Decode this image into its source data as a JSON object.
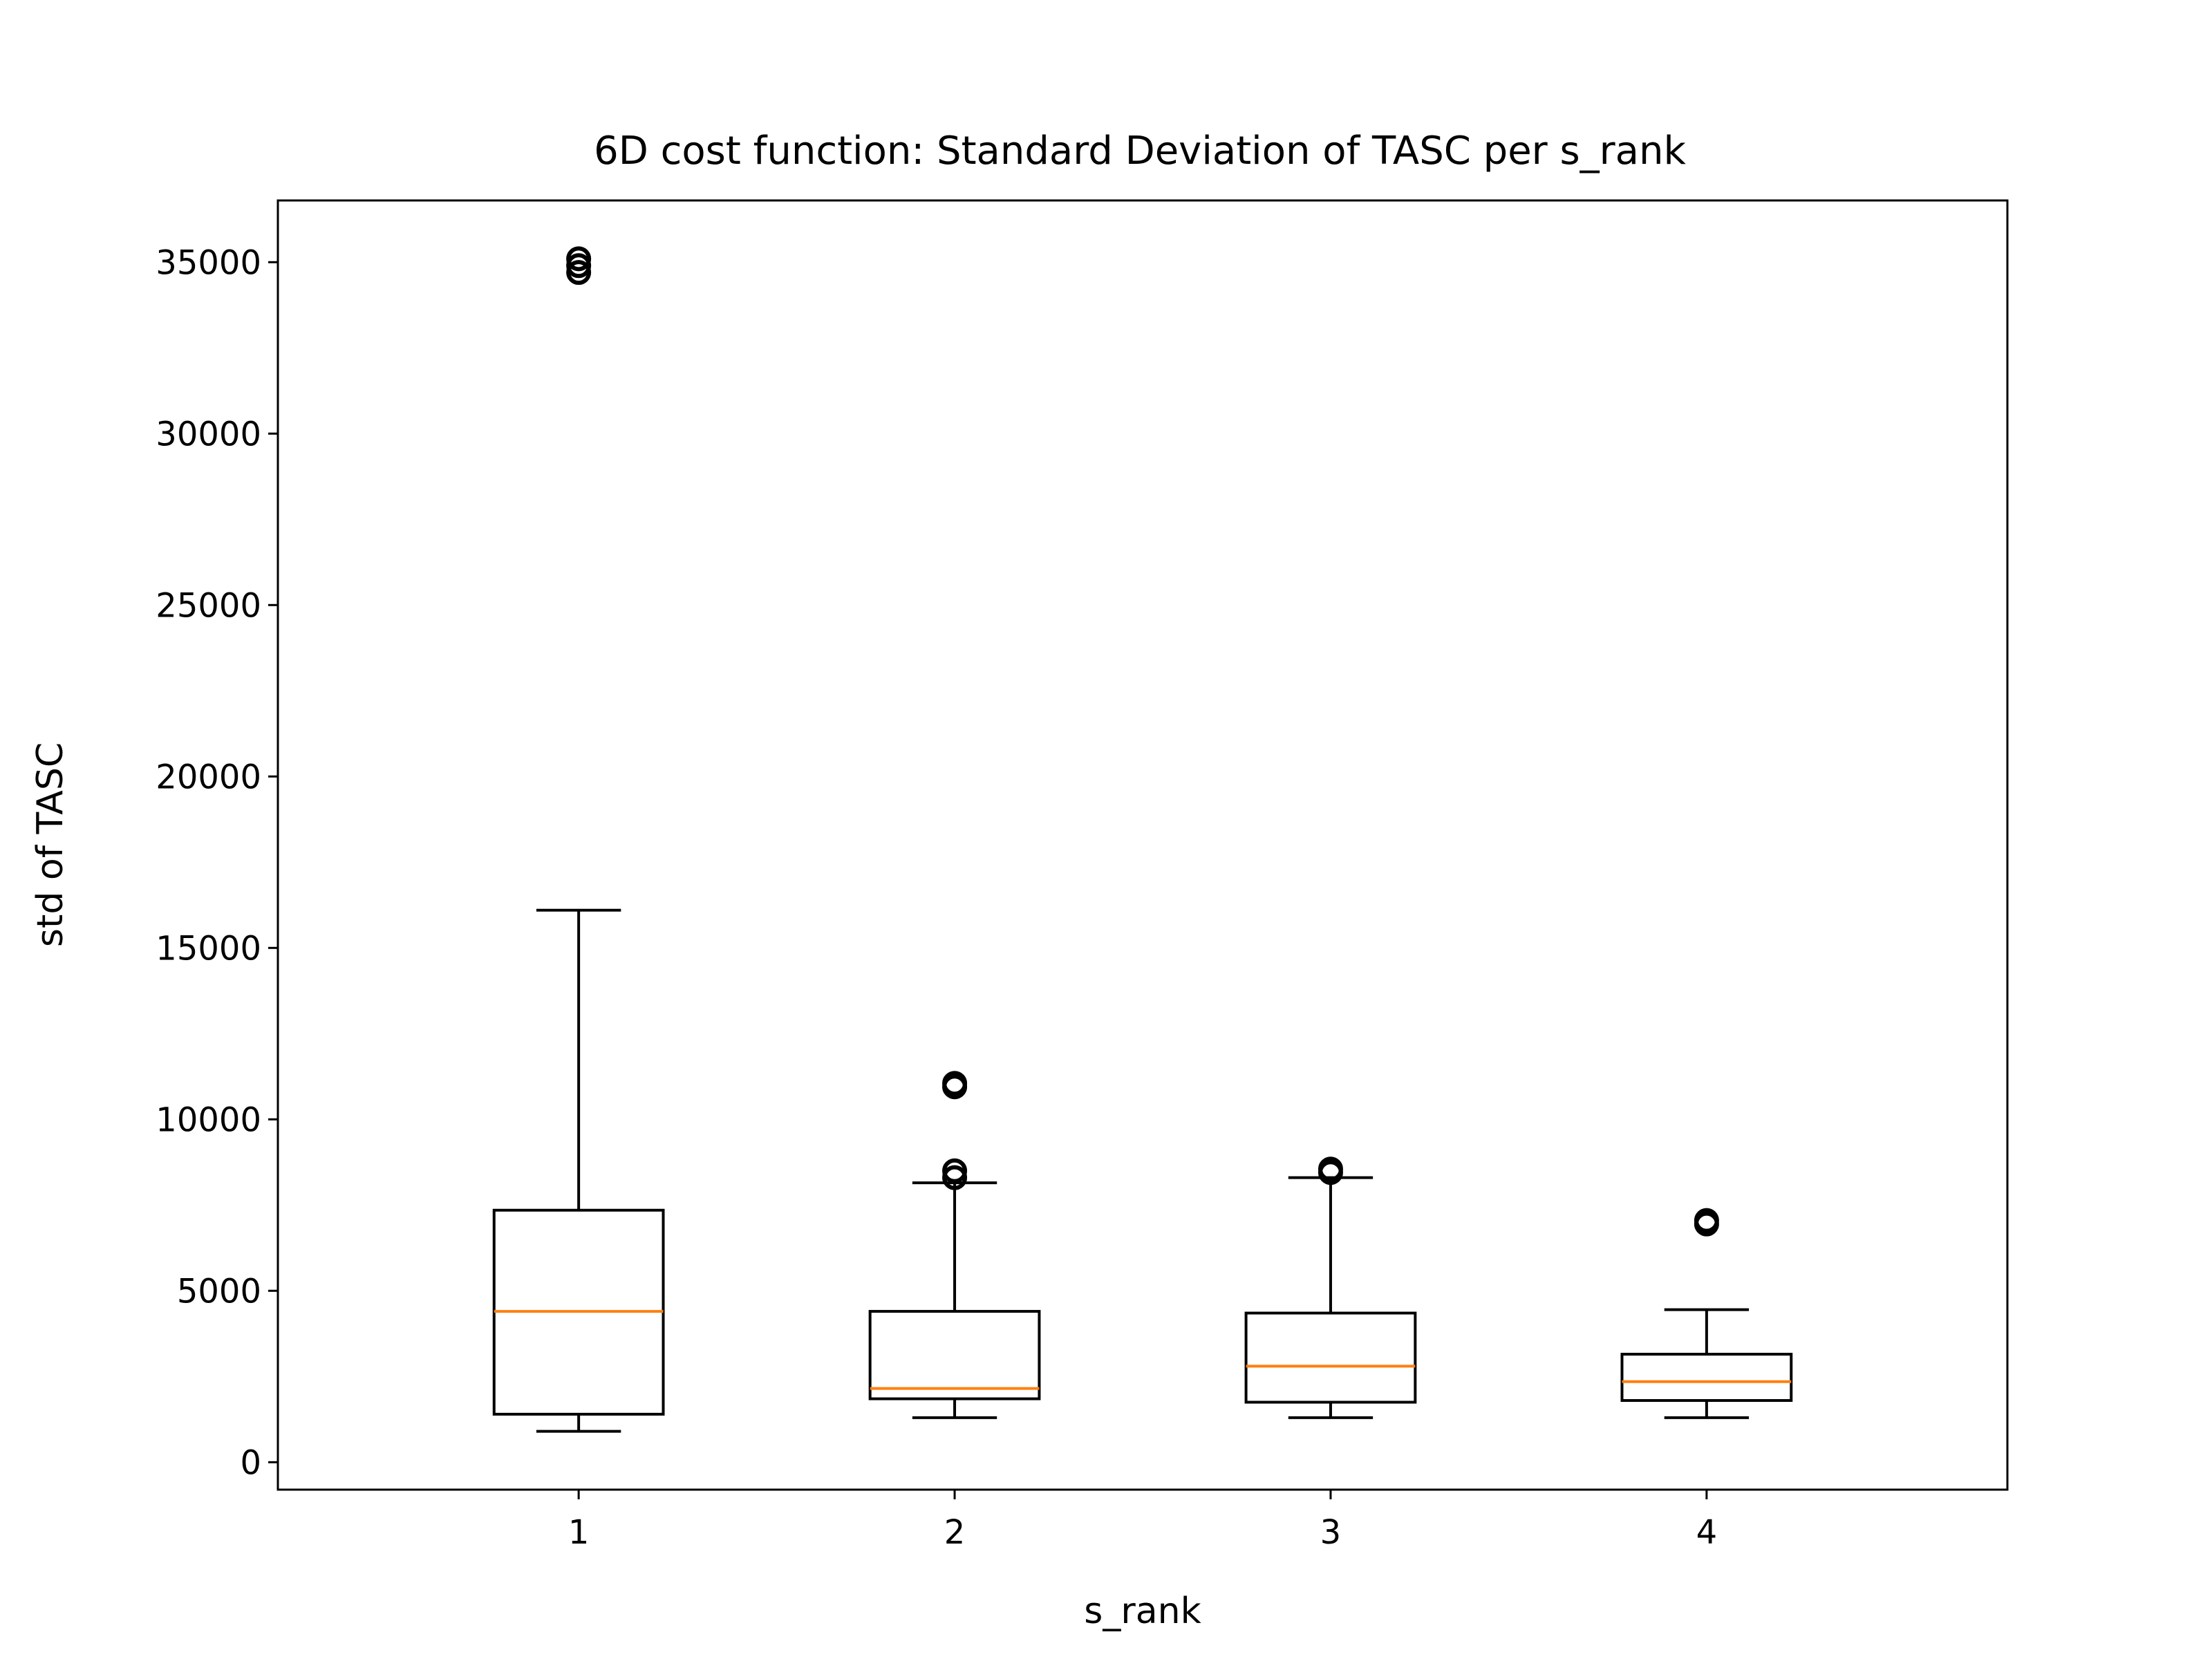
{
  "chart_data": {
    "type": "box",
    "title": "6D cost function: Standard Deviation of TASC per s_rank",
    "xlabel": "s_rank",
    "ylabel": "std of TASC",
    "categories": [
      "1",
      "2",
      "3",
      "4"
    ],
    "ylim": [
      -800,
      36800
    ],
    "yticks": [
      0,
      5000,
      10000,
      15000,
      20000,
      25000,
      30000,
      35000
    ],
    "grid": false,
    "legend": "none",
    "boxes": [
      {
        "category": "1",
        "whisker_low": 900,
        "q1": 1400,
        "median": 4400,
        "q3": 7350,
        "whisker_high": 16100,
        "outliers": [
          34700,
          34900,
          35100
        ]
      },
      {
        "category": "2",
        "whisker_low": 1300,
        "q1": 1850,
        "median": 2150,
        "q3": 4400,
        "whisker_high": 8150,
        "outliers": [
          8300,
          8500,
          10950,
          11050
        ]
      },
      {
        "category": "3",
        "whisker_low": 1300,
        "q1": 1750,
        "median": 2800,
        "q3": 4350,
        "whisker_high": 8300,
        "outliers": [
          8450,
          8550
        ]
      },
      {
        "category": "4",
        "whisker_low": 1300,
        "q1": 1800,
        "median": 2350,
        "q3": 3150,
        "whisker_high": 4450,
        "outliers": [
          6950,
          7050
        ]
      }
    ],
    "colors": {
      "box": "#000000",
      "median": "#ff7f0e",
      "background": "#ffffff"
    }
  }
}
